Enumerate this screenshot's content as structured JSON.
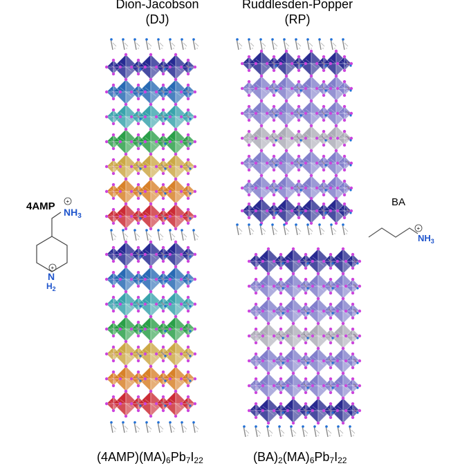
{
  "titles": {
    "dj_line1": "Dion-Jacobson",
    "dj_line2": "(DJ)",
    "rp_line1": "Ruddlesden-Popper",
    "rp_line2": "(RP)"
  },
  "formulas": {
    "dj": {
      "p1": "(4AMP)(MA)",
      "s1": "6",
      "p2": "Pb",
      "s2": "7",
      "p3": "I",
      "s3": "22"
    },
    "rp": {
      "p1": "(BA)",
      "s1": "2",
      "p2": "(MA)",
      "s2": "6",
      "p3": "Pb",
      "s3": "7",
      "p4": "I",
      "s4": "22"
    }
  },
  "molecules": {
    "amp": {
      "label": "4AMP",
      "amine": "NH",
      "amine_sub": "3",
      "ring_n": "N",
      "ring_h": "H",
      "ring_h_sub": "2",
      "charge": "+"
    },
    "ba": {
      "label": "BA",
      "amine": "NH",
      "amine_sub": "3",
      "charge": "+"
    }
  },
  "colors": {
    "dj_layers": [
      "#1a1f8c",
      "#1c62b0",
      "#2e9ea8",
      "#1f9a3e",
      "#c9a33c",
      "#d67a1e",
      "#c8202a"
    ],
    "rp_dark": "#1c1f8a",
    "rp_medium": "#7a78c8",
    "rp_gray": "#a9a9b4",
    "iodide": "#cc44dd",
    "nitrogen": "#1f6fd6",
    "carbon": "#888888"
  }
}
